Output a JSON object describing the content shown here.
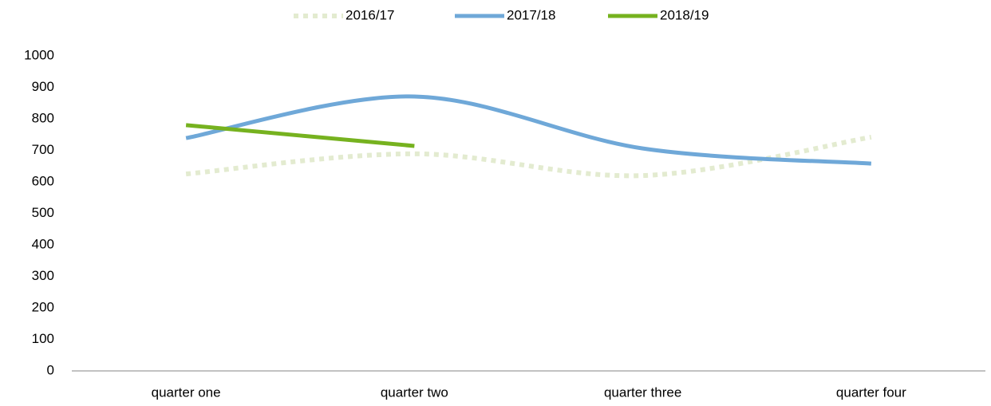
{
  "chart_data": {
    "type": "line",
    "categories": [
      "quarter one",
      "quarter two",
      "quarter three",
      "quarter four"
    ],
    "series": [
      {
        "name": "2016/17",
        "color": "#e3ebd0",
        "dashed": true,
        "values": [
          625,
          689,
          620,
          742
        ]
      },
      {
        "name": "2017/18",
        "color": "#6fa8d8",
        "values": [
          739,
          871,
          706,
          658
        ]
      },
      {
        "name": "2018/19",
        "color": "#76b21f",
        "values": [
          780,
          714,
          null,
          null
        ]
      }
    ],
    "ylim": [
      0,
      1000
    ],
    "yticks": [
      0,
      100,
      200,
      300,
      400,
      500,
      600,
      700,
      800,
      900,
      1000
    ],
    "smooth": true,
    "grid": false,
    "legend": "top"
  }
}
